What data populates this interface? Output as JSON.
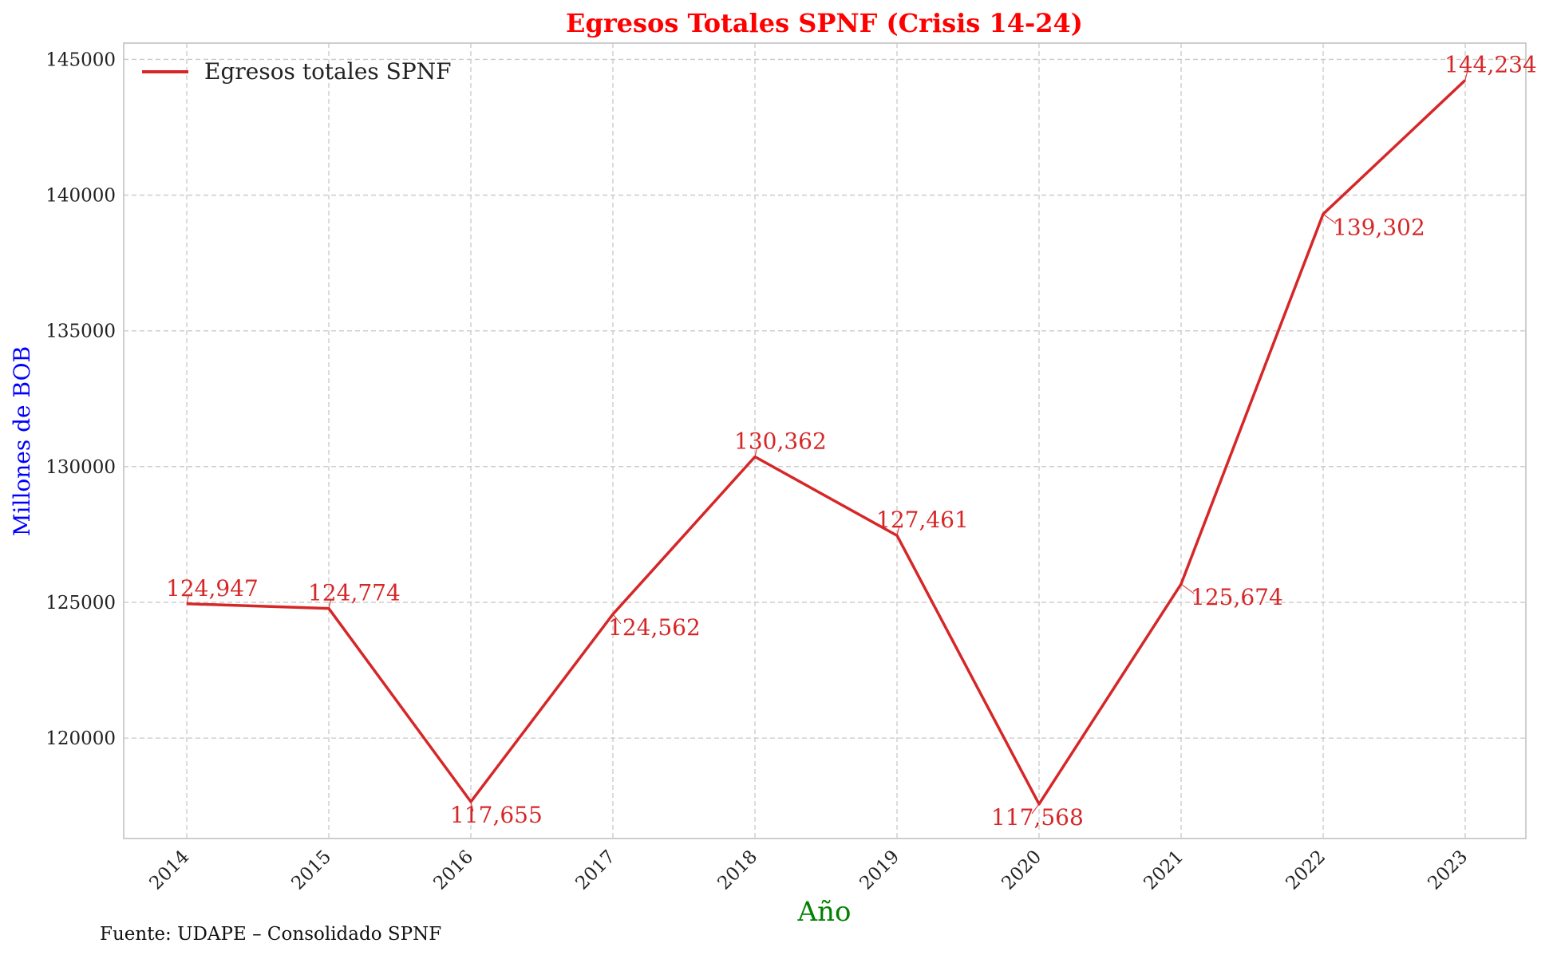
{
  "chart_data": {
    "type": "line",
    "title": "Egresos Totales SPNF (Crisis 14-24)",
    "xlabel": "Año",
    "ylabel": "Millones de BOB",
    "categories": [
      "2014",
      "2015",
      "2016",
      "2017",
      "2018",
      "2019",
      "2020",
      "2021",
      "2022",
      "2023"
    ],
    "series": [
      {
        "name": "Egresos totales SPNF",
        "values": [
          124947,
          124774,
          117655,
          124562,
          130362,
          127461,
          117568,
          125674,
          139302,
          144234
        ],
        "labels": [
          "124,947",
          "124,774",
          "117,655",
          "124,562",
          "130,362",
          "127,461",
          "117,568",
          "125,674",
          "139,302",
          "144,234"
        ],
        "color": "#d62728"
      }
    ],
    "ylim": [
      116300,
      145600
    ],
    "yticks": [
      120000,
      125000,
      130000,
      135000,
      140000,
      145000
    ],
    "ytick_labels": [
      "120000",
      "125000",
      "130000",
      "135000",
      "140000",
      "145000"
    ],
    "grid": true,
    "legend_position": "top-left",
    "title_color": "#ff0000",
    "xlabel_color": "#008000",
    "ylabel_color": "#0000ff",
    "source": "Fuente: UDAPE – Consolidado SPNF"
  }
}
